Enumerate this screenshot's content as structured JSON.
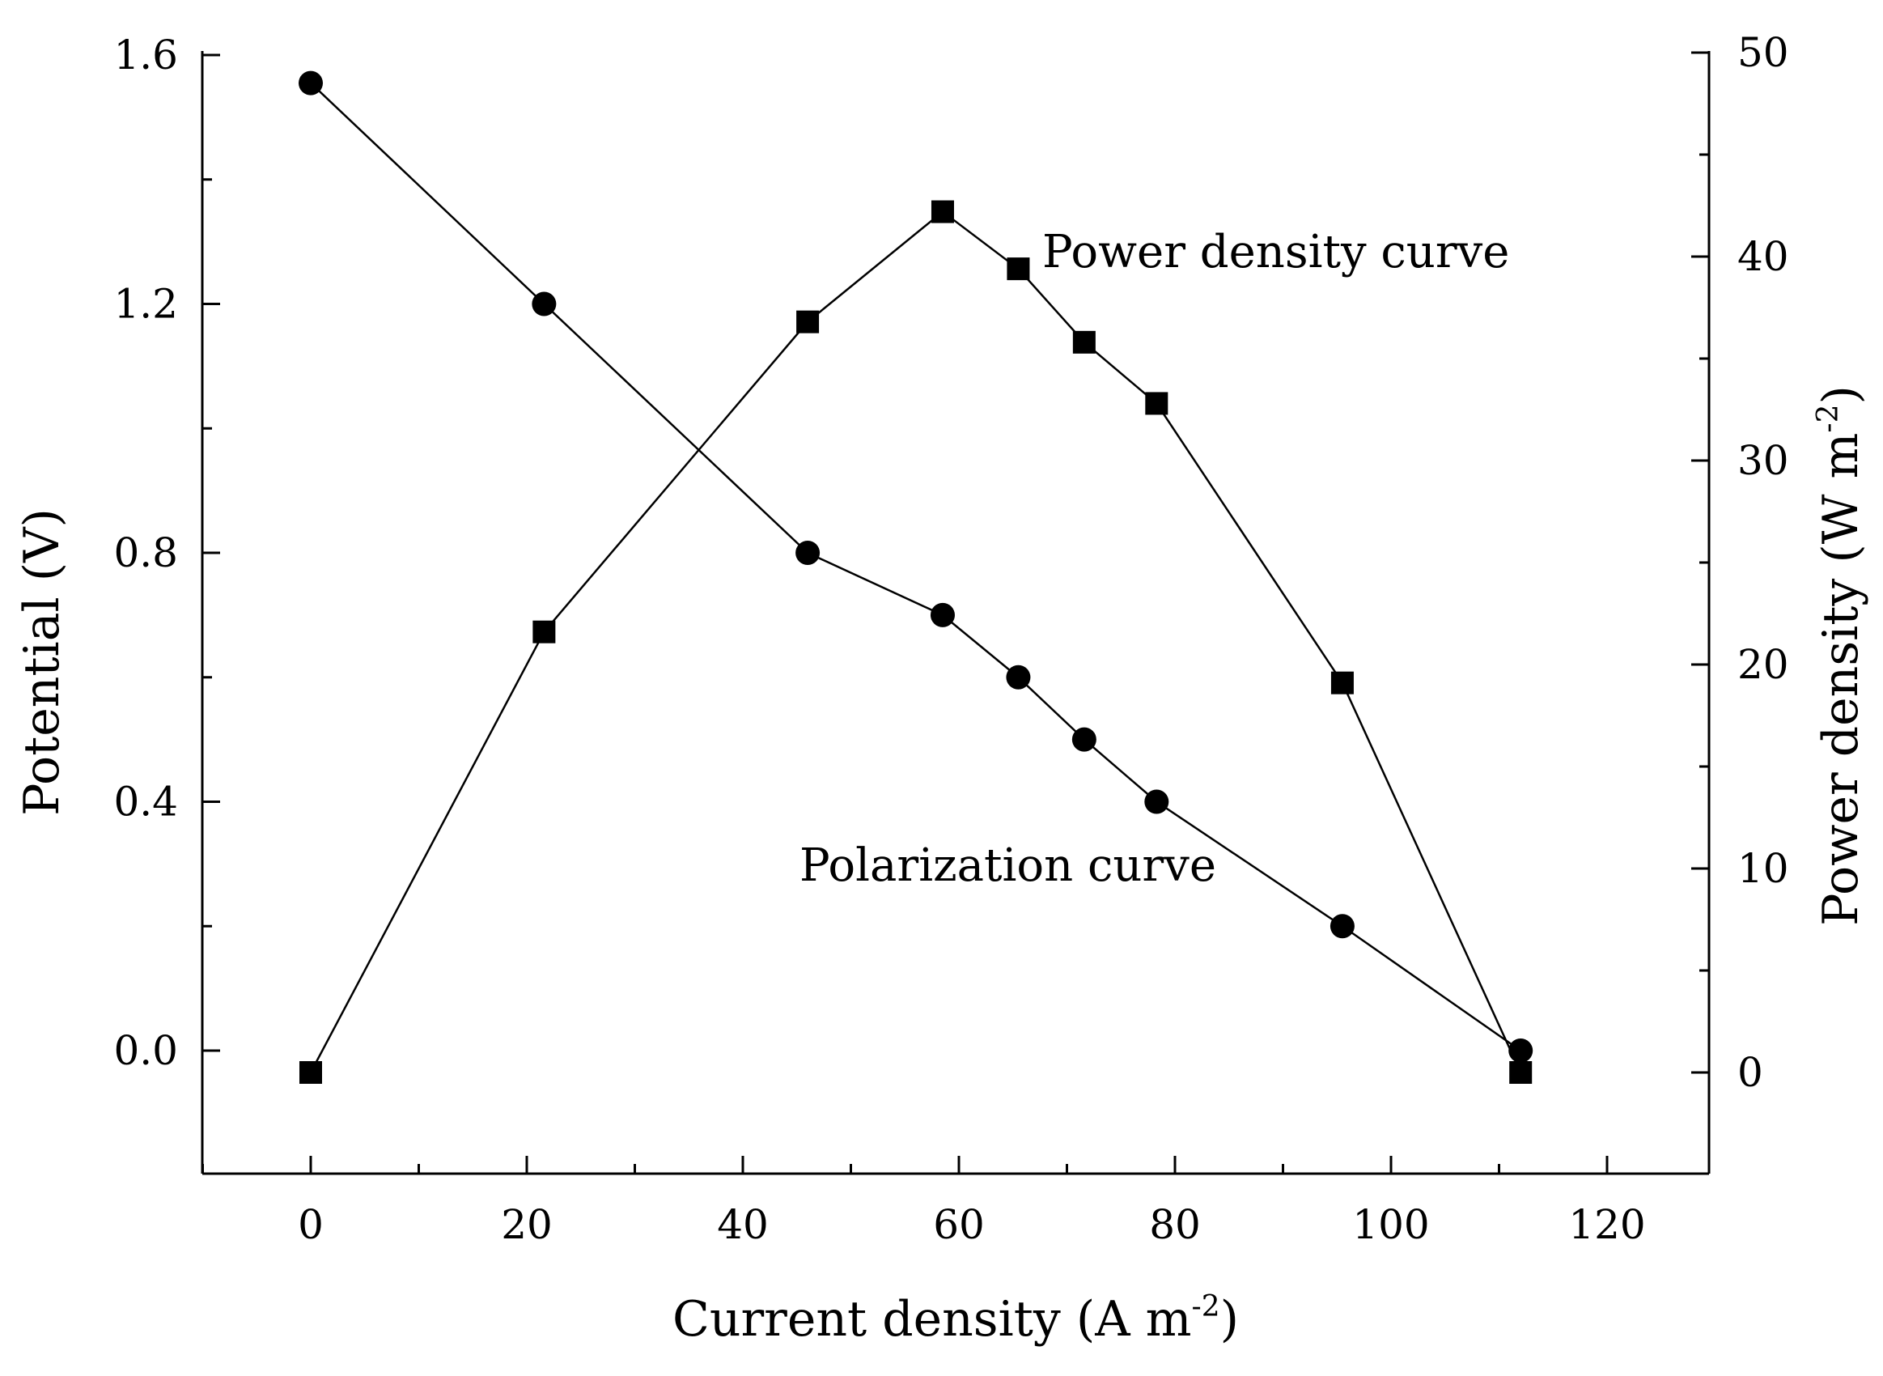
{
  "chart_data": {
    "type": "line",
    "title": "",
    "xlabel": "Current density (A m",
    "xlabel_sup": "-2",
    "xlabel_end": ")",
    "ylabel_left": "Potential (V)",
    "ylabel_right": "Power density (W m",
    "ylabel_right_sup": "-2",
    "ylabel_right_end": ")",
    "xlim": [
      -10,
      130
    ],
    "ylim_left": [
      -0.2,
      1.6
    ],
    "ylim_right": [
      -5,
      50
    ],
    "x_ticks": [
      "0",
      "20",
      "40",
      "60",
      "80",
      "100",
      "120"
    ],
    "y_left_ticks": [
      "0.0",
      "0.4",
      "0.8",
      "1.2",
      "1.6"
    ],
    "y_right_ticks": [
      "0",
      "10",
      "20",
      "30",
      "40",
      "50"
    ],
    "grid": false,
    "series": [
      {
        "name": "Polarization curve",
        "axis": "left",
        "marker": "circle",
        "x": [
          0,
          21.6,
          46,
          58.5,
          65.5,
          71.6,
          78.3,
          95.5,
          112
        ],
        "y": [
          1.555,
          1.2,
          0.8,
          0.7,
          0.6,
          0.5,
          0.4,
          0.2,
          0.0
        ]
      },
      {
        "name": "Power density curve",
        "axis": "right",
        "marker": "square",
        "x": [
          0,
          21.6,
          46,
          58.5,
          65.5,
          71.6,
          78.3,
          95.5,
          112
        ],
        "y": [
          0,
          21.6,
          36.8,
          42.2,
          39.4,
          35.8,
          32.8,
          19.1,
          0
        ]
      }
    ],
    "annotations": [
      {
        "text": "Power density curve",
        "series": "Power density curve"
      },
      {
        "text": "Polarization curve",
        "series": "Polarization curve"
      }
    ]
  }
}
